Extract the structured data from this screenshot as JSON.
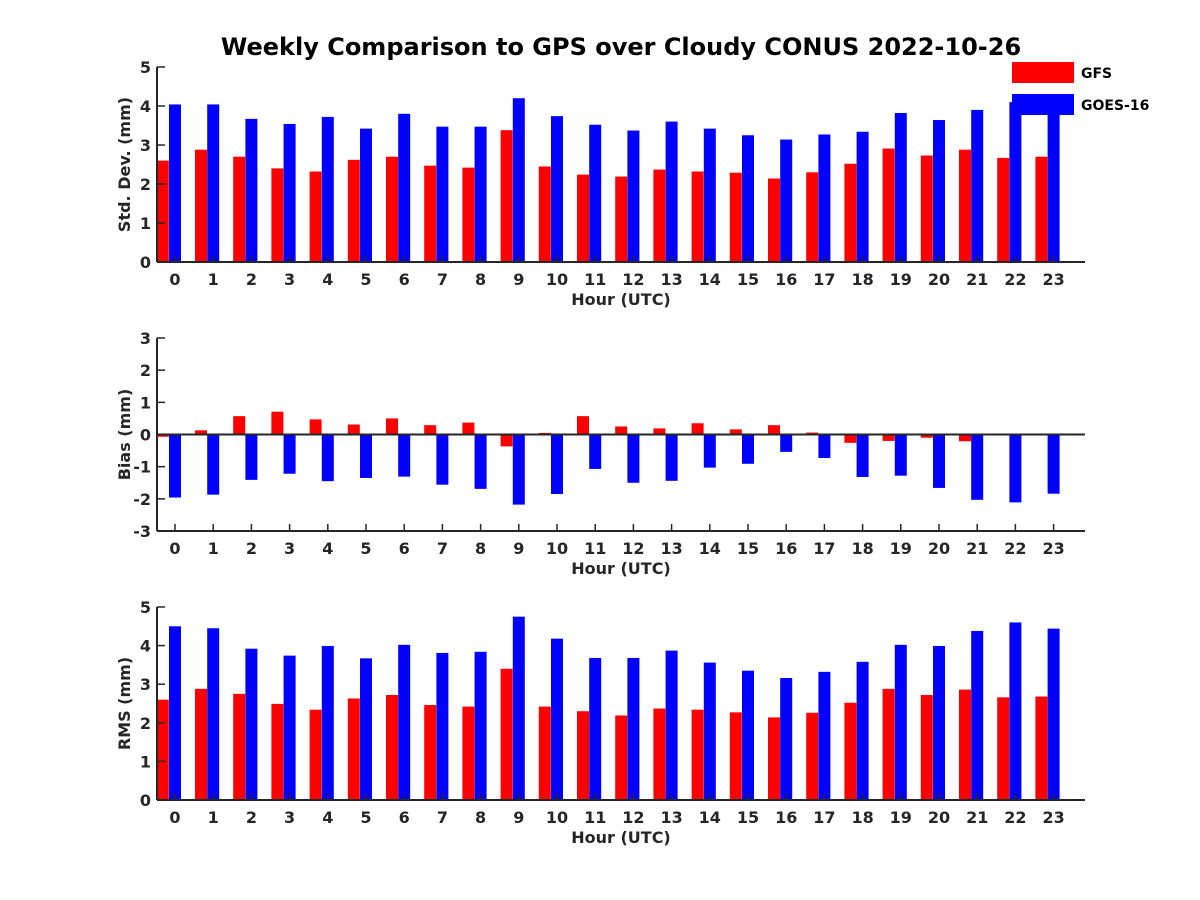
{
  "figure_title": "Weekly Comparison to GPS over Cloudy CONUS 2022-10-26",
  "legend": [
    {
      "name": "GFS",
      "color": "#ff0000"
    },
    {
      "name": "GOES-16",
      "color": "#0000ff"
    }
  ],
  "chart_data": [
    {
      "type": "bar",
      "title": "Weekly Comparison to GPS over Cloudy CONUS 2022-10-26",
      "xlabel": "Hour (UTC)",
      "ylabel": "Std. Dev. (mm)",
      "ylim": [
        0,
        5
      ],
      "yticks": [
        "0",
        "1",
        "2",
        "3",
        "4",
        "5"
      ],
      "categories": [
        "0",
        "1",
        "2",
        "3",
        "4",
        "5",
        "6",
        "7",
        "8",
        "9",
        "10",
        "11",
        "12",
        "13",
        "14",
        "15",
        "16",
        "17",
        "18",
        "19",
        "20",
        "21",
        "22",
        "23"
      ],
      "legend_position": "top-right",
      "grid": false,
      "series": [
        {
          "name": "GFS",
          "color": "#ff0000",
          "values": [
            2.6,
            2.88,
            2.7,
            2.4,
            2.32,
            2.62,
            2.7,
            2.47,
            2.42,
            3.38,
            2.45,
            2.24,
            2.19,
            2.37,
            2.32,
            2.29,
            2.14,
            2.3,
            2.52,
            2.91,
            2.73,
            2.88,
            2.67,
            2.7
          ]
        },
        {
          "name": "GOES-16",
          "color": "#0000ff",
          "values": [
            4.04,
            4.04,
            3.67,
            3.54,
            3.72,
            3.42,
            3.8,
            3.47,
            3.47,
            4.2,
            3.74,
            3.52,
            3.37,
            3.6,
            3.42,
            3.25,
            3.14,
            3.27,
            3.34,
            3.82,
            3.64,
            3.9,
            4.1,
            4.0
          ]
        }
      ]
    },
    {
      "type": "bar",
      "xlabel": "Hour (UTC)",
      "ylabel": "Bias (mm)",
      "ylim": [
        -3,
        3
      ],
      "yticks": [
        "-3",
        "-2",
        "-1",
        "0",
        "1",
        "2",
        "3"
      ],
      "categories": [
        "0",
        "1",
        "2",
        "3",
        "4",
        "5",
        "6",
        "7",
        "8",
        "9",
        "10",
        "11",
        "12",
        "13",
        "14",
        "15",
        "16",
        "17",
        "18",
        "19",
        "20",
        "21",
        "22",
        "23"
      ],
      "grid": false,
      "series": [
        {
          "name": "GFS",
          "color": "#ff0000",
          "values": [
            -0.07,
            0.13,
            0.57,
            0.71,
            0.47,
            0.31,
            0.5,
            0.29,
            0.37,
            -0.37,
            0.05,
            0.57,
            0.25,
            0.19,
            0.35,
            0.16,
            0.29,
            0.06,
            -0.26,
            -0.2,
            -0.1,
            -0.21,
            0.0,
            0.0
          ]
        },
        {
          "name": "GOES-16",
          "color": "#0000ff",
          "values": [
            -1.96,
            -1.87,
            -1.41,
            -1.22,
            -1.45,
            -1.35,
            -1.31,
            -1.56,
            -1.69,
            -2.18,
            -1.85,
            -1.07,
            -1.5,
            -1.44,
            -1.03,
            -0.91,
            -0.54,
            -0.73,
            -1.32,
            -1.28,
            -1.66,
            -2.03,
            -2.11,
            -1.84
          ]
        }
      ]
    },
    {
      "type": "bar",
      "xlabel": "Hour (UTC)",
      "ylabel": "RMS (mm)",
      "ylim": [
        0,
        5
      ],
      "yticks": [
        "0",
        "1",
        "2",
        "3",
        "4",
        "5"
      ],
      "categories": [
        "0",
        "1",
        "2",
        "3",
        "4",
        "5",
        "6",
        "7",
        "8",
        "9",
        "10",
        "11",
        "12",
        "13",
        "14",
        "15",
        "16",
        "17",
        "18",
        "19",
        "20",
        "21",
        "22",
        "23"
      ],
      "grid": false,
      "series": [
        {
          "name": "GFS",
          "color": "#ff0000",
          "values": [
            2.6,
            2.88,
            2.75,
            2.49,
            2.34,
            2.63,
            2.72,
            2.46,
            2.42,
            3.4,
            2.42,
            2.3,
            2.19,
            2.37,
            2.34,
            2.27,
            2.14,
            2.26,
            2.52,
            2.88,
            2.72,
            2.86,
            2.66,
            2.68
          ]
        },
        {
          "name": "GOES-16",
          "color": "#0000ff",
          "values": [
            4.5,
            4.45,
            3.92,
            3.74,
            3.99,
            3.67,
            4.02,
            3.81,
            3.84,
            4.75,
            4.18,
            3.68,
            3.68,
            3.87,
            3.56,
            3.35,
            3.16,
            3.32,
            3.58,
            4.02,
            3.99,
            4.38,
            4.6,
            4.44
          ]
        }
      ]
    }
  ]
}
